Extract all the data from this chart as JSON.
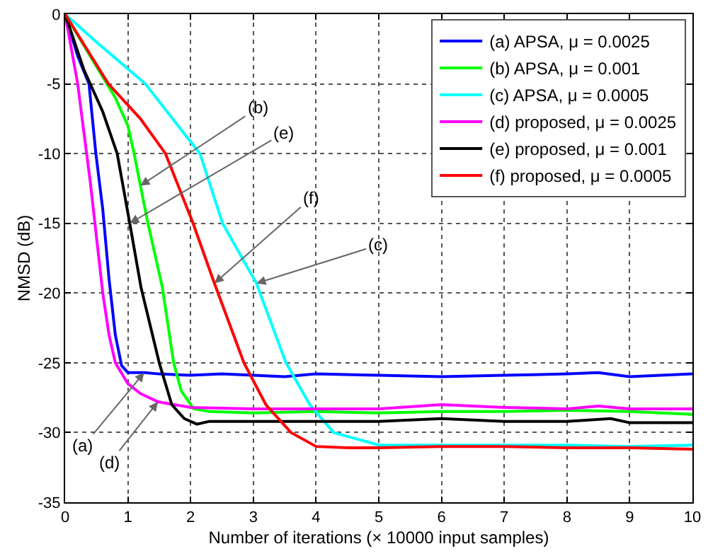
{
  "chart_data": {
    "type": "line",
    "xlabel": "Number of iterations (× 10000 input samples)",
    "ylabel": "NMSD (dB)",
    "xlim": [
      0,
      10
    ],
    "ylim": [
      -35,
      0
    ],
    "xticks": [
      0,
      1,
      2,
      3,
      4,
      5,
      6,
      7,
      8,
      9,
      10
    ],
    "yticks": [
      -35,
      -30,
      -25,
      -20,
      -15,
      -10,
      -5,
      0
    ],
    "grid": true,
    "legend": "top right",
    "marker": "none",
    "line_style": "solid",
    "series": [
      {
        "name": "(a) APSA, μ = 0.0025",
        "color": "#0000ff",
        "x": [
          0,
          0.2,
          0.38,
          0.49,
          0.6,
          0.7,
          0.8,
          0.9,
          1.0,
          1.26,
          1.5,
          2,
          2.5,
          3,
          3.5,
          4,
          5,
          6,
          7,
          8,
          8.5,
          9,
          10
        ],
        "values": [
          0,
          -3,
          -5,
          -10,
          -14,
          -19,
          -23,
          -25.2,
          -25.7,
          -25.7,
          -25.8,
          -25.9,
          -25.8,
          -25.9,
          -26,
          -25.8,
          -25.9,
          -26,
          -25.9,
          -25.8,
          -25.7,
          -26,
          -25.8
        ]
      },
      {
        "name": "(b) APSA, μ = 0.001",
        "color": "#00ff00",
        "x": [
          0,
          0.4,
          0.8,
          1.0,
          1.1,
          1.2,
          1.32,
          1.55,
          1.73,
          1.85,
          2.05,
          2.3,
          3,
          4,
          5,
          6,
          7,
          8,
          9,
          10
        ],
        "values": [
          0,
          -3,
          -6,
          -8,
          -10,
          -12.3,
          -15,
          -19.6,
          -25,
          -27,
          -28.3,
          -28.5,
          -28.6,
          -28.5,
          -28.6,
          -28.5,
          -28.5,
          -28.4,
          -28.5,
          -28.7
        ]
      },
      {
        "name": "(c) APSA, μ = 0.0005",
        "color": "#00ffff",
        "x": [
          0,
          0.5,
          1.28,
          1.8,
          2.15,
          2.51,
          3.05,
          3.52,
          3.9,
          4.28,
          5,
          6,
          7,
          8,
          9,
          10
        ],
        "values": [
          0,
          -2,
          -5,
          -8,
          -10,
          -15,
          -19.3,
          -25,
          -28,
          -30,
          -30.9,
          -30.9,
          -30.9,
          -30.9,
          -31,
          -30.9
        ]
      },
      {
        "name": "(d) proposed, μ = 0.0025",
        "color": "#ff00ff",
        "x": [
          0,
          0.2,
          0.4,
          0.5,
          0.6,
          0.7,
          0.8,
          1.0,
          1.2,
          1.48,
          2,
          3,
          4,
          5,
          6,
          7,
          8,
          8.5,
          9,
          10
        ],
        "values": [
          0,
          -5,
          -12,
          -16,
          -20,
          -23,
          -25,
          -26.5,
          -27.2,
          -27.8,
          -28.2,
          -28.3,
          -28.3,
          -28.3,
          -28,
          -28.2,
          -28.3,
          -28.1,
          -28.3,
          -28.3
        ]
      },
      {
        "name": "(e) proposed, μ = 0.001",
        "color": "#000000",
        "x": [
          0,
          0.3,
          0.6,
          0.83,
          1.03,
          1.21,
          1.5,
          1.7,
          1.9,
          2.1,
          2.3,
          3,
          4,
          5,
          6,
          7,
          8,
          8.7,
          9,
          10
        ],
        "values": [
          0,
          -4,
          -7,
          -10,
          -15,
          -19.6,
          -25,
          -28,
          -29,
          -29.4,
          -29.2,
          -29.2,
          -29.2,
          -29.2,
          -29,
          -29.2,
          -29.2,
          -29,
          -29.3,
          -29.3
        ]
      },
      {
        "name": "(f) proposed, μ = 0.0005",
        "color": "#ff0000",
        "x": [
          0,
          0.69,
          1.2,
          1.6,
          2.04,
          2.38,
          2.85,
          3.2,
          3.6,
          4.0,
          4.5,
          5,
          6,
          7,
          8,
          9,
          10
        ],
        "values": [
          0,
          -5,
          -7.5,
          -10,
          -15,
          -19.3,
          -25,
          -28,
          -30,
          -31,
          -31.1,
          -31.1,
          -31,
          -31,
          -31.1,
          -31.1,
          -31.2
        ]
      }
    ],
    "annotations": [
      {
        "text": "(b)",
        "x": 1.2,
        "y": -12.3
      },
      {
        "text": "(e)",
        "x": 1.03,
        "y": -15
      },
      {
        "text": "(f)",
        "x": 2.38,
        "y": -19.3
      },
      {
        "text": "(c)",
        "x": 3.05,
        "y": -19.3
      },
      {
        "text": "(a)",
        "x": 1.26,
        "y": -25.7
      },
      {
        "text": "(d)",
        "x": 1.48,
        "y": -27.8
      }
    ]
  }
}
